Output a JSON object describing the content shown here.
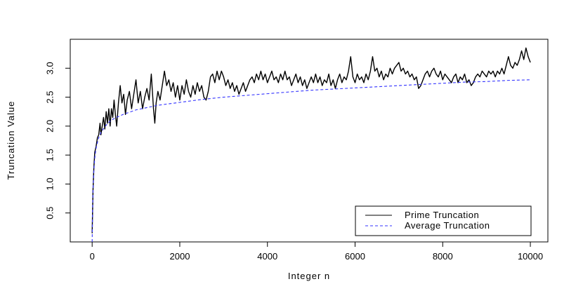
{
  "chart_data": {
    "type": "line",
    "title": "",
    "xlabel": "Integer n",
    "ylabel": "Truncation Value",
    "xlim": [
      -500,
      10400
    ],
    "ylim": [
      0,
      3.5
    ],
    "x_ticks": [
      0,
      2000,
      4000,
      6000,
      8000,
      10000
    ],
    "x_tick_labels": [
      "0",
      "2000",
      "4000",
      "6000",
      "8000",
      "10000"
    ],
    "y_ticks": [
      0.5,
      1.0,
      1.5,
      2.0,
      2.5,
      3.0
    ],
    "y_tick_labels": [
      "0.5",
      "1.0",
      "1.5",
      "2.0",
      "2.5",
      "3.0"
    ],
    "grid": false,
    "legend_position": "bottom-right",
    "series": [
      {
        "name": "Prime Truncation",
        "color": "#000000",
        "style": "solid",
        "points": [
          [
            0,
            0.15
          ],
          [
            20,
            0.9
          ],
          [
            40,
            1.3
          ],
          [
            60,
            1.55
          ],
          [
            90,
            1.65
          ],
          [
            120,
            1.8
          ],
          [
            150,
            1.85
          ],
          [
            180,
            2.05
          ],
          [
            200,
            1.85
          ],
          [
            230,
            2.0
          ],
          [
            260,
            2.15
          ],
          [
            290,
            1.95
          ],
          [
            320,
            2.25
          ],
          [
            350,
            2.05
          ],
          [
            380,
            2.3
          ],
          [
            410,
            2.0
          ],
          [
            440,
            2.3
          ],
          [
            470,
            2.15
          ],
          [
            500,
            2.45
          ],
          [
            530,
            2.2
          ],
          [
            560,
            2.0
          ],
          [
            600,
            2.4
          ],
          [
            640,
            2.7
          ],
          [
            680,
            2.4
          ],
          [
            720,
            2.55
          ],
          [
            760,
            2.2
          ],
          [
            800,
            2.45
          ],
          [
            850,
            2.6
          ],
          [
            900,
            2.3
          ],
          [
            950,
            2.55
          ],
          [
            1000,
            2.8
          ],
          [
            1050,
            2.4
          ],
          [
            1100,
            2.6
          ],
          [
            1150,
            2.3
          ],
          [
            1200,
            2.5
          ],
          [
            1250,
            2.65
          ],
          [
            1300,
            2.45
          ],
          [
            1350,
            2.9
          ],
          [
            1400,
            2.3
          ],
          [
            1430,
            2.05
          ],
          [
            1460,
            2.4
          ],
          [
            1500,
            2.6
          ],
          [
            1550,
            2.45
          ],
          [
            1600,
            2.7
          ],
          [
            1650,
            2.95
          ],
          [
            1700,
            2.7
          ],
          [
            1750,
            2.8
          ],
          [
            1800,
            2.6
          ],
          [
            1850,
            2.75
          ],
          [
            1900,
            2.5
          ],
          [
            1950,
            2.7
          ],
          [
            2000,
            2.45
          ],
          [
            2050,
            2.7
          ],
          [
            2100,
            2.55
          ],
          [
            2150,
            2.8
          ],
          [
            2200,
            2.6
          ],
          [
            2250,
            2.5
          ],
          [
            2300,
            2.7
          ],
          [
            2350,
            2.55
          ],
          [
            2400,
            2.75
          ],
          [
            2450,
            2.6
          ],
          [
            2500,
            2.7
          ],
          [
            2550,
            2.5
          ],
          [
            2600,
            2.45
          ],
          [
            2650,
            2.6
          ],
          [
            2700,
            2.85
          ],
          [
            2750,
            2.9
          ],
          [
            2800,
            2.75
          ],
          [
            2850,
            2.95
          ],
          [
            2900,
            2.8
          ],
          [
            2950,
            2.95
          ],
          [
            3000,
            2.85
          ],
          [
            3050,
            2.7
          ],
          [
            3100,
            2.8
          ],
          [
            3150,
            2.65
          ],
          [
            3200,
            2.75
          ],
          [
            3250,
            2.6
          ],
          [
            3300,
            2.7
          ],
          [
            3350,
            2.55
          ],
          [
            3400,
            2.65
          ],
          [
            3450,
            2.75
          ],
          [
            3500,
            2.6
          ],
          [
            3550,
            2.7
          ],
          [
            3600,
            2.8
          ],
          [
            3650,
            2.85
          ],
          [
            3700,
            2.75
          ],
          [
            3750,
            2.9
          ],
          [
            3800,
            2.8
          ],
          [
            3850,
            2.95
          ],
          [
            3900,
            2.8
          ],
          [
            3950,
            2.9
          ],
          [
            4000,
            2.75
          ],
          [
            4050,
            2.85
          ],
          [
            4100,
            2.95
          ],
          [
            4150,
            2.8
          ],
          [
            4200,
            2.85
          ],
          [
            4250,
            2.75
          ],
          [
            4300,
            2.9
          ],
          [
            4350,
            2.8
          ],
          [
            4400,
            2.95
          ],
          [
            4450,
            2.8
          ],
          [
            4500,
            2.85
          ],
          [
            4550,
            2.7
          ],
          [
            4600,
            2.8
          ],
          [
            4650,
            2.9
          ],
          [
            4700,
            2.75
          ],
          [
            4750,
            2.85
          ],
          [
            4800,
            2.7
          ],
          [
            4850,
            2.8
          ],
          [
            4900,
            2.65
          ],
          [
            4950,
            2.75
          ],
          [
            5000,
            2.85
          ],
          [
            5050,
            2.75
          ],
          [
            5100,
            2.9
          ],
          [
            5150,
            2.75
          ],
          [
            5200,
            2.85
          ],
          [
            5250,
            2.7
          ],
          [
            5300,
            2.8
          ],
          [
            5350,
            2.75
          ],
          [
            5400,
            2.9
          ],
          [
            5450,
            2.7
          ],
          [
            5500,
            2.8
          ],
          [
            5550,
            2.65
          ],
          [
            5600,
            2.8
          ],
          [
            5650,
            2.9
          ],
          [
            5700,
            2.75
          ],
          [
            5750,
            2.85
          ],
          [
            5800,
            2.8
          ],
          [
            5850,
            2.95
          ],
          [
            5900,
            3.2
          ],
          [
            5950,
            2.85
          ],
          [
            6000,
            2.75
          ],
          [
            6050,
            2.9
          ],
          [
            6100,
            2.8
          ],
          [
            6150,
            2.85
          ],
          [
            6200,
            2.75
          ],
          [
            6250,
            2.9
          ],
          [
            6300,
            2.8
          ],
          [
            6350,
            2.95
          ],
          [
            6400,
            3.2
          ],
          [
            6450,
            2.95
          ],
          [
            6500,
            3.0
          ],
          [
            6550,
            2.85
          ],
          [
            6600,
            2.95
          ],
          [
            6650,
            2.8
          ],
          [
            6700,
            2.9
          ],
          [
            6750,
            2.85
          ],
          [
            6800,
            3.0
          ],
          [
            6850,
            2.9
          ],
          [
            6900,
            3.0
          ],
          [
            6950,
            3.05
          ],
          [
            7000,
            3.1
          ],
          [
            7050,
            2.95
          ],
          [
            7100,
            3.0
          ],
          [
            7150,
            2.9
          ],
          [
            7200,
            2.95
          ],
          [
            7250,
            2.85
          ],
          [
            7300,
            2.9
          ],
          [
            7350,
            2.8
          ],
          [
            7400,
            2.85
          ],
          [
            7450,
            2.65
          ],
          [
            7500,
            2.7
          ],
          [
            7550,
            2.8
          ],
          [
            7600,
            2.9
          ],
          [
            7650,
            2.95
          ],
          [
            7700,
            2.85
          ],
          [
            7750,
            2.95
          ],
          [
            7800,
            3.0
          ],
          [
            7850,
            2.9
          ],
          [
            7900,
            2.85
          ],
          [
            7950,
            2.95
          ],
          [
            8000,
            2.8
          ],
          [
            8050,
            2.9
          ],
          [
            8100,
            2.85
          ],
          [
            8150,
            2.8
          ],
          [
            8200,
            2.75
          ],
          [
            8250,
            2.85
          ],
          [
            8300,
            2.9
          ],
          [
            8350,
            2.75
          ],
          [
            8400,
            2.85
          ],
          [
            8450,
            2.8
          ],
          [
            8500,
            2.9
          ],
          [
            8550,
            2.75
          ],
          [
            8600,
            2.8
          ],
          [
            8650,
            2.7
          ],
          [
            8700,
            2.75
          ],
          [
            8750,
            2.85
          ],
          [
            8800,
            2.9
          ],
          [
            8850,
            2.85
          ],
          [
            8900,
            2.95
          ],
          [
            8950,
            2.9
          ],
          [
            9000,
            2.85
          ],
          [
            9050,
            2.95
          ],
          [
            9100,
            2.9
          ],
          [
            9150,
            2.95
          ],
          [
            9200,
            2.85
          ],
          [
            9250,
            2.95
          ],
          [
            9300,
            2.9
          ],
          [
            9350,
            3.0
          ],
          [
            9400,
            2.9
          ],
          [
            9450,
            3.05
          ],
          [
            9500,
            3.2
          ],
          [
            9550,
            3.05
          ],
          [
            9600,
            3.0
          ],
          [
            9650,
            3.1
          ],
          [
            9700,
            3.05
          ],
          [
            9750,
            3.15
          ],
          [
            9800,
            3.3
          ],
          [
            9850,
            3.15
          ],
          [
            9900,
            3.35
          ],
          [
            9950,
            3.2
          ],
          [
            10000,
            3.1
          ]
        ]
      },
      {
        "name": "Average Truncation",
        "color": "#3333ff",
        "style": "dashed",
        "points": [
          [
            0,
            0.0
          ],
          [
            10,
            0.55
          ],
          [
            20,
            0.9
          ],
          [
            40,
            1.25
          ],
          [
            60,
            1.45
          ],
          [
            80,
            1.57
          ],
          [
            100,
            1.66
          ],
          [
            150,
            1.8
          ],
          [
            200,
            1.89
          ],
          [
            300,
            2.0
          ],
          [
            400,
            2.08
          ],
          [
            500,
            2.13
          ],
          [
            700,
            2.2
          ],
          [
            1000,
            2.28
          ],
          [
            1500,
            2.36
          ],
          [
            2000,
            2.41
          ],
          [
            2500,
            2.46
          ],
          [
            3000,
            2.5
          ],
          [
            3500,
            2.53
          ],
          [
            4000,
            2.56
          ],
          [
            4500,
            2.59
          ],
          [
            5000,
            2.62
          ],
          [
            5500,
            2.64
          ],
          [
            6000,
            2.66
          ],
          [
            6500,
            2.68
          ],
          [
            7000,
            2.7
          ],
          [
            7500,
            2.72
          ],
          [
            8000,
            2.74
          ],
          [
            8500,
            2.76
          ],
          [
            9000,
            2.77
          ],
          [
            9500,
            2.79
          ],
          [
            10000,
            2.8
          ]
        ]
      }
    ]
  }
}
